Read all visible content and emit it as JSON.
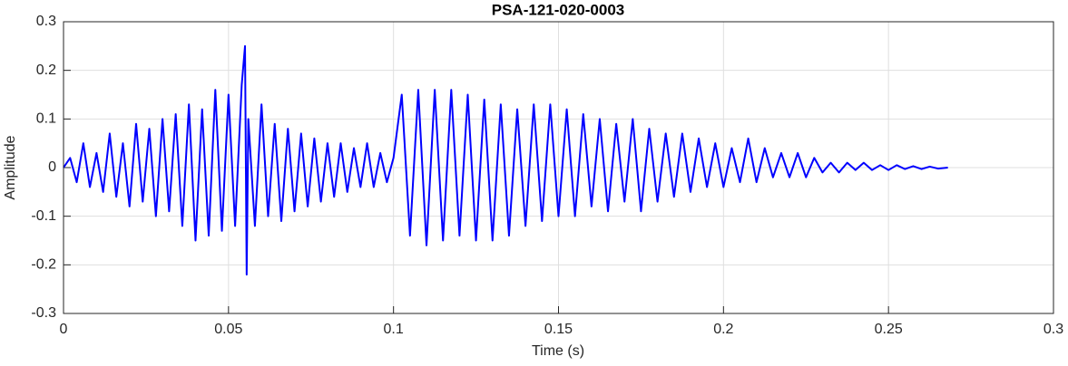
{
  "chart_data": {
    "type": "line",
    "title": "PSA-121-020-0003",
    "xlabel": "Time (s)",
    "ylabel": "Amplitude",
    "xlim": [
      0,
      0.3
    ],
    "xticks": [
      0,
      0.05,
      0.1,
      0.15,
      0.2,
      0.25,
      0.3
    ],
    "ylim": [
      -0.3,
      0.3
    ],
    "yticks": [
      -0.3,
      -0.2,
      -0.1,
      0,
      0.1,
      0.2,
      0.3
    ],
    "grid": true,
    "x": [
      0,
      0.002,
      0.004,
      0.006,
      0.008,
      0.01,
      0.012,
      0.014,
      0.016,
      0.018,
      0.02,
      0.022,
      0.024,
      0.026,
      0.028,
      0.03,
      0.032,
      0.034,
      0.036,
      0.038,
      0.04,
      0.042,
      0.044,
      0.046,
      0.048,
      0.05,
      0.052,
      0.054,
      0.055,
      0.0555,
      0.056,
      0.058,
      0.06,
      0.062,
      0.064,
      0.066,
      0.068,
      0.07,
      0.072,
      0.074,
      0.076,
      0.078,
      0.08,
      0.082,
      0.084,
      0.086,
      0.088,
      0.09,
      0.092,
      0.094,
      0.096,
      0.098,
      0.1,
      0.1025,
      0.105,
      0.1075,
      0.11,
      0.1125,
      0.115,
      0.1175,
      0.12,
      0.1225,
      0.125,
      0.1275,
      0.13,
      0.1325,
      0.135,
      0.1375,
      0.14,
      0.1425,
      0.145,
      0.1475,
      0.15,
      0.1525,
      0.155,
      0.1575,
      0.16,
      0.1625,
      0.165,
      0.1675,
      0.17,
      0.1725,
      0.175,
      0.1775,
      0.18,
      0.1825,
      0.185,
      0.1875,
      0.19,
      0.1925,
      0.195,
      0.1975,
      0.2,
      0.2025,
      0.205,
      0.2075,
      0.21,
      0.2125,
      0.215,
      0.2175,
      0.22,
      0.2225,
      0.225,
      0.2275,
      0.23,
      0.2325,
      0.235,
      0.2375,
      0.24,
      0.2425,
      0.245,
      0.2475,
      0.25,
      0.2525,
      0.255,
      0.2575,
      0.26,
      0.2625,
      0.265,
      0.268
    ],
    "series": [
      {
        "color": "#0000ff",
        "values": [
          0,
          0.02,
          -0.03,
          0.05,
          -0.04,
          0.03,
          -0.05,
          0.07,
          -0.06,
          0.05,
          -0.08,
          0.09,
          -0.07,
          0.08,
          -0.1,
          0.1,
          -0.09,
          0.11,
          -0.12,
          0.13,
          -0.15,
          0.12,
          -0.14,
          0.16,
          -0.13,
          0.15,
          -0.12,
          0.17,
          0.25,
          -0.22,
          0.1,
          -0.12,
          0.13,
          -0.1,
          0.09,
          -0.11,
          0.08,
          -0.09,
          0.07,
          -0.08,
          0.06,
          -0.07,
          0.05,
          -0.06,
          0.05,
          -0.05,
          0.04,
          -0.04,
          0.05,
          -0.04,
          0.03,
          -0.03,
          0.02,
          0.15,
          -0.14,
          0.16,
          -0.16,
          0.16,
          -0.15,
          0.16,
          -0.14,
          0.15,
          -0.15,
          0.14,
          -0.15,
          0.13,
          -0.14,
          0.12,
          -0.12,
          0.13,
          -0.11,
          0.13,
          -0.1,
          0.12,
          -0.1,
          0.11,
          -0.08,
          0.1,
          -0.09,
          0.09,
          -0.07,
          0.1,
          -0.09,
          0.08,
          -0.07,
          0.07,
          -0.06,
          0.07,
          -0.05,
          0.06,
          -0.04,
          0.05,
          -0.04,
          0.04,
          -0.03,
          0.06,
          -0.03,
          0.04,
          -0.02,
          0.03,
          -0.02,
          0.03,
          -0.02,
          0.02,
          -0.01,
          0.01,
          -0.01,
          0.01,
          -0.005,
          0.01,
          -0.005,
          0.005,
          -0.005,
          0.005,
          -0.003,
          0.003,
          -0.003,
          0.002,
          -0.002,
          0
        ]
      }
    ]
  }
}
